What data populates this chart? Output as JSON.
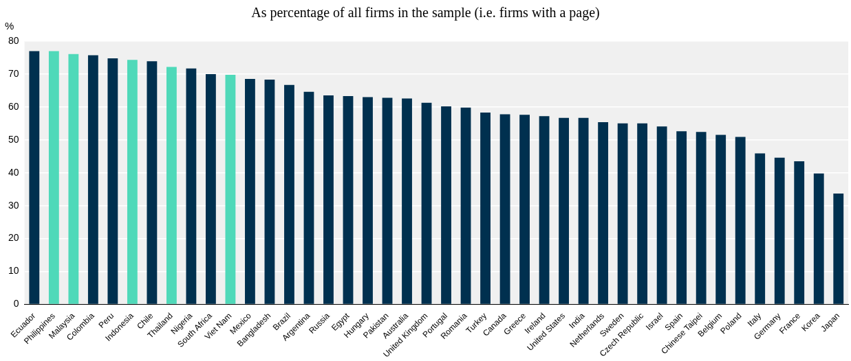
{
  "chart_data": {
    "type": "bar",
    "title": "As percentage of all firms in the sample (i.e. firms with a page)",
    "ylabel": "%",
    "categories": [
      "Ecuador",
      "Philippines",
      "Malaysia",
      "Colombia",
      "Peru",
      "Indonesia",
      "Chile",
      "Thailand",
      "Nigeria",
      "South Africa",
      "Viet Nam",
      "Mexico",
      "Bangladesh",
      "Brazil",
      "Argentina",
      "Russia",
      "Egypt",
      "Hungary",
      "Pakistan",
      "Australia",
      "United Kingdom",
      "Portugal",
      "Romania",
      "Turkey",
      "Canada",
      "Greece",
      "Ireland",
      "United States",
      "India",
      "Netherlands",
      "Sweden",
      "Czech Republic",
      "Israel",
      "Spain",
      "Chinese Taipei",
      "Belgium",
      "Poland",
      "Italy",
      "Germany",
      "France",
      "Korea",
      "Japan"
    ],
    "values": [
      77.0,
      77.0,
      76.1,
      75.7,
      74.8,
      74.3,
      73.9,
      72.2,
      71.7,
      70.0,
      69.8,
      68.5,
      68.3,
      66.7,
      64.6,
      63.5,
      63.3,
      63.0,
      62.8,
      62.6,
      61.3,
      60.2,
      59.8,
      58.3,
      57.8,
      57.6,
      57.2,
      56.7,
      56.7,
      55.4,
      55.0,
      55.0,
      54.1,
      52.6,
      52.4,
      51.5,
      50.9,
      45.9,
      44.6,
      43.5,
      39.8,
      33.7
    ],
    "colors": [
      "#00304f",
      "#4fd9b9",
      "#4fd9b9",
      "#00304f",
      "#00304f",
      "#4fd9b9",
      "#00304f",
      "#4fd9b9",
      "#00304f",
      "#00304f",
      "#4fd9b9",
      "#00304f",
      "#00304f",
      "#00304f",
      "#00304f",
      "#00304f",
      "#00304f",
      "#00304f",
      "#00304f",
      "#00304f",
      "#00304f",
      "#00304f",
      "#00304f",
      "#00304f",
      "#00304f",
      "#00304f",
      "#00304f",
      "#00304f",
      "#00304f",
      "#00304f",
      "#00304f",
      "#00304f",
      "#00304f",
      "#00304f",
      "#00304f",
      "#00304f",
      "#00304f",
      "#00304f",
      "#00304f",
      "#00304f",
      "#00304f",
      "#00304f"
    ],
    "ylim": [
      0,
      80
    ],
    "yticks": [
      0,
      10,
      20,
      30,
      40,
      50,
      60,
      70,
      80
    ],
    "grid": "y",
    "legend": false
  }
}
